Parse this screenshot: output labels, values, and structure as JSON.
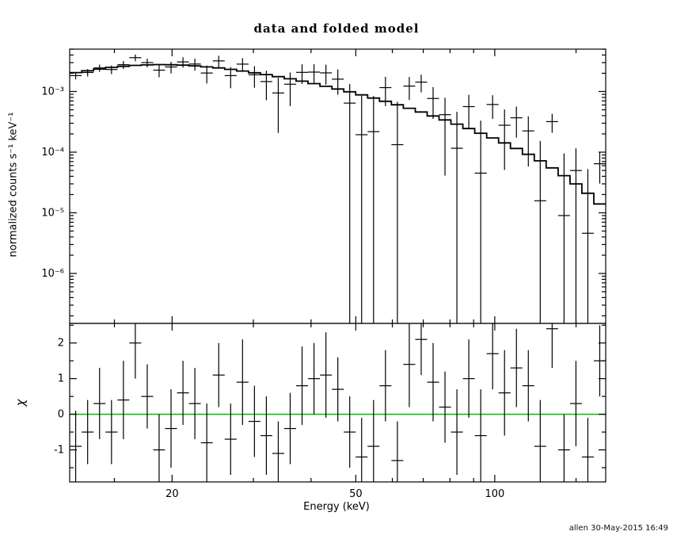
{
  "window": {
    "title": "data and folded model"
  },
  "footer": {
    "credit": "allen 30-May-2015 16:49"
  },
  "chart_data": [
    {
      "type": "scatter",
      "panel": "spectrum",
      "title": "data and folded model",
      "ylabel": "normalized counts s⁻¹ keV⁻¹",
      "xscale": "log",
      "yscale": "log",
      "xlim": [
        12.0,
        173.91
      ],
      "ylim": [
        1.5e-07,
        0.005
      ],
      "xticks": {
        "major": [
          20,
          50,
          100
        ],
        "labels": [
          "20",
          "50",
          "100"
        ],
        "minor": [
          15,
          30,
          40,
          60,
          70,
          80,
          90,
          150
        ]
      },
      "yticks": {
        "major": [
          1e-06,
          1e-05,
          0.0001,
          0.001
        ],
        "labels": [
          "10⁻⁶",
          "10⁻⁵",
          "10⁻⁴",
          "10⁻³"
        ]
      },
      "series": [
        {
          "name": "data",
          "marker": "cross-errorbar",
          "color": "#000000"
        },
        {
          "name": "folded model",
          "marker": "step-line",
          "color": "#000000"
        }
      ],
      "bins": {
        "e_edges": [
          12.0,
          12.74,
          13.52,
          14.35,
          15.23,
          16.16,
          17.15,
          18.2,
          19.31,
          20.5,
          21.75,
          23.08,
          24.5,
          26.0,
          27.59,
          29.28,
          31.07,
          32.97,
          34.99,
          37.13,
          39.4,
          41.82,
          44.38,
          47.09,
          49.97,
          53.03,
          56.28,
          59.72,
          63.38,
          67.26,
          71.37,
          75.74,
          80.37,
          85.29,
          90.51,
          96.05,
          101.92,
          108.16,
          114.77,
          121.79,
          129.24,
          137.15,
          145.54,
          154.44,
          163.89,
          173.91
        ],
        "data": [
          0.00183,
          0.00206,
          0.00245,
          0.00231,
          0.00277,
          0.00362,
          0.003,
          0.00225,
          0.00254,
          0.00308,
          0.00284,
          0.00202,
          0.0032,
          0.00183,
          0.00283,
          0.00189,
          0.00146,
          0.000947,
          0.00132,
          0.00207,
          0.00209,
          0.00203,
          0.0016,
          0.000644,
          0.000194,
          0.000218,
          0.00116,
          0.000133,
          0.00123,
          0.00143,
          0.000768,
          0.000415,
          0.000116,
          0.000564,
          4.51e-05,
          0.000611,
          0.000278,
          0.000369,
          0.000224,
          1.58e-05,
          0.000319,
          9e-06,
          4.98e-05,
          4.6e-06,
          6.44e-05
        ],
        "err": [
          0.000246,
          0.000286,
          0.000329,
          0.000375,
          0.000416,
          0.000459,
          0.000495,
          0.000528,
          0.000552,
          0.000598,
          0.000636,
          0.000663,
          0.000686,
          0.000696,
          0.000719,
          0.000734,
          0.000741,
          0.000739,
          0.000745,
          0.00074,
          0.000743,
          0.000732,
          0.000715,
          0.000693,
          0.00066,
          0.000624,
          0.000587,
          0.000545,
          0.000504,
          0.00046,
          0.000415,
          0.000374,
          0.000348,
          0.000319,
          0.000287,
          0.000258,
          0.000227,
          0.000196,
          0.000166,
          0.000137,
          0.00011,
          8.6e-05,
          6.6e-05,
          4.8e-05,
          3.4e-05
        ],
        "model": [
          0.00205,
          0.0022,
          0.00235,
          0.0025,
          0.0026,
          0.0027,
          0.00275,
          0.00278,
          0.00276,
          0.00272,
          0.00265,
          0.00255,
          0.00245,
          0.00232,
          0.00218,
          0.00204,
          0.0019,
          0.00176,
          0.00162,
          0.00148,
          0.00135,
          0.00122,
          0.0011,
          0.00099,
          0.00088,
          0.00078,
          0.00069,
          0.000605,
          0.00053,
          0.00046,
          0.000395,
          0.00034,
          0.00029,
          0.000245,
          0.000205,
          0.000172,
          0.000142,
          0.000115,
          9.2e-05,
          7.2e-05,
          5.5e-05,
          4.1e-05,
          3e-05,
          2.1e-05,
          1.4e-05
        ]
      }
    },
    {
      "type": "scatter",
      "panel": "residuals",
      "ylabel": "χ",
      "xlabel": "Energy (keV)",
      "xscale": "log",
      "xlim": [
        12.0,
        173.91
      ],
      "ylim": [
        -1.9,
        2.55
      ],
      "yticks": {
        "major": [
          -1,
          0,
          1,
          2
        ],
        "labels": [
          "-1",
          "0",
          "1",
          "2"
        ],
        "minor": [
          -1.5,
          -0.5,
          0.5,
          1.5,
          2.5
        ]
      },
      "zero_line": {
        "value": 0,
        "color": "#00C000"
      },
      "chi": [
        -0.9,
        -0.5,
        0.3,
        -0.5,
        0.4,
        2.0,
        0.5,
        -1.0,
        -0.4,
        0.6,
        0.3,
        -0.8,
        1.1,
        -0.7,
        0.9,
        -0.2,
        -0.6,
        -1.1,
        -0.4,
        0.8,
        1.0,
        1.1,
        0.7,
        -0.5,
        -1.2,
        -0.9,
        0.8,
        -1.3,
        1.4,
        2.1,
        0.9,
        0.2,
        -0.5,
        1.0,
        -0.6,
        1.7,
        0.6,
        1.3,
        0.8,
        -0.9,
        2.4,
        -1.0,
        0.3,
        -1.2,
        1.5
      ],
      "chi_err": [
        1.0,
        0.9,
        1.0,
        0.9,
        1.1,
        1.0,
        0.9,
        1.0,
        1.1,
        0.9,
        1.0,
        1.1,
        0.9,
        1.0,
        1.2,
        1.0,
        1.1,
        0.9,
        1.0,
        1.1,
        1.0,
        1.2,
        0.9,
        1.0,
        1.1,
        1.3,
        1.0,
        1.1,
        1.2,
        1.0,
        1.1,
        1.0,
        1.2,
        1.1,
        1.3,
        1.0,
        1.2,
        1.1,
        1.0,
        1.3,
        1.1,
        1.0,
        1.2,
        1.1,
        1.0
      ]
    }
  ]
}
